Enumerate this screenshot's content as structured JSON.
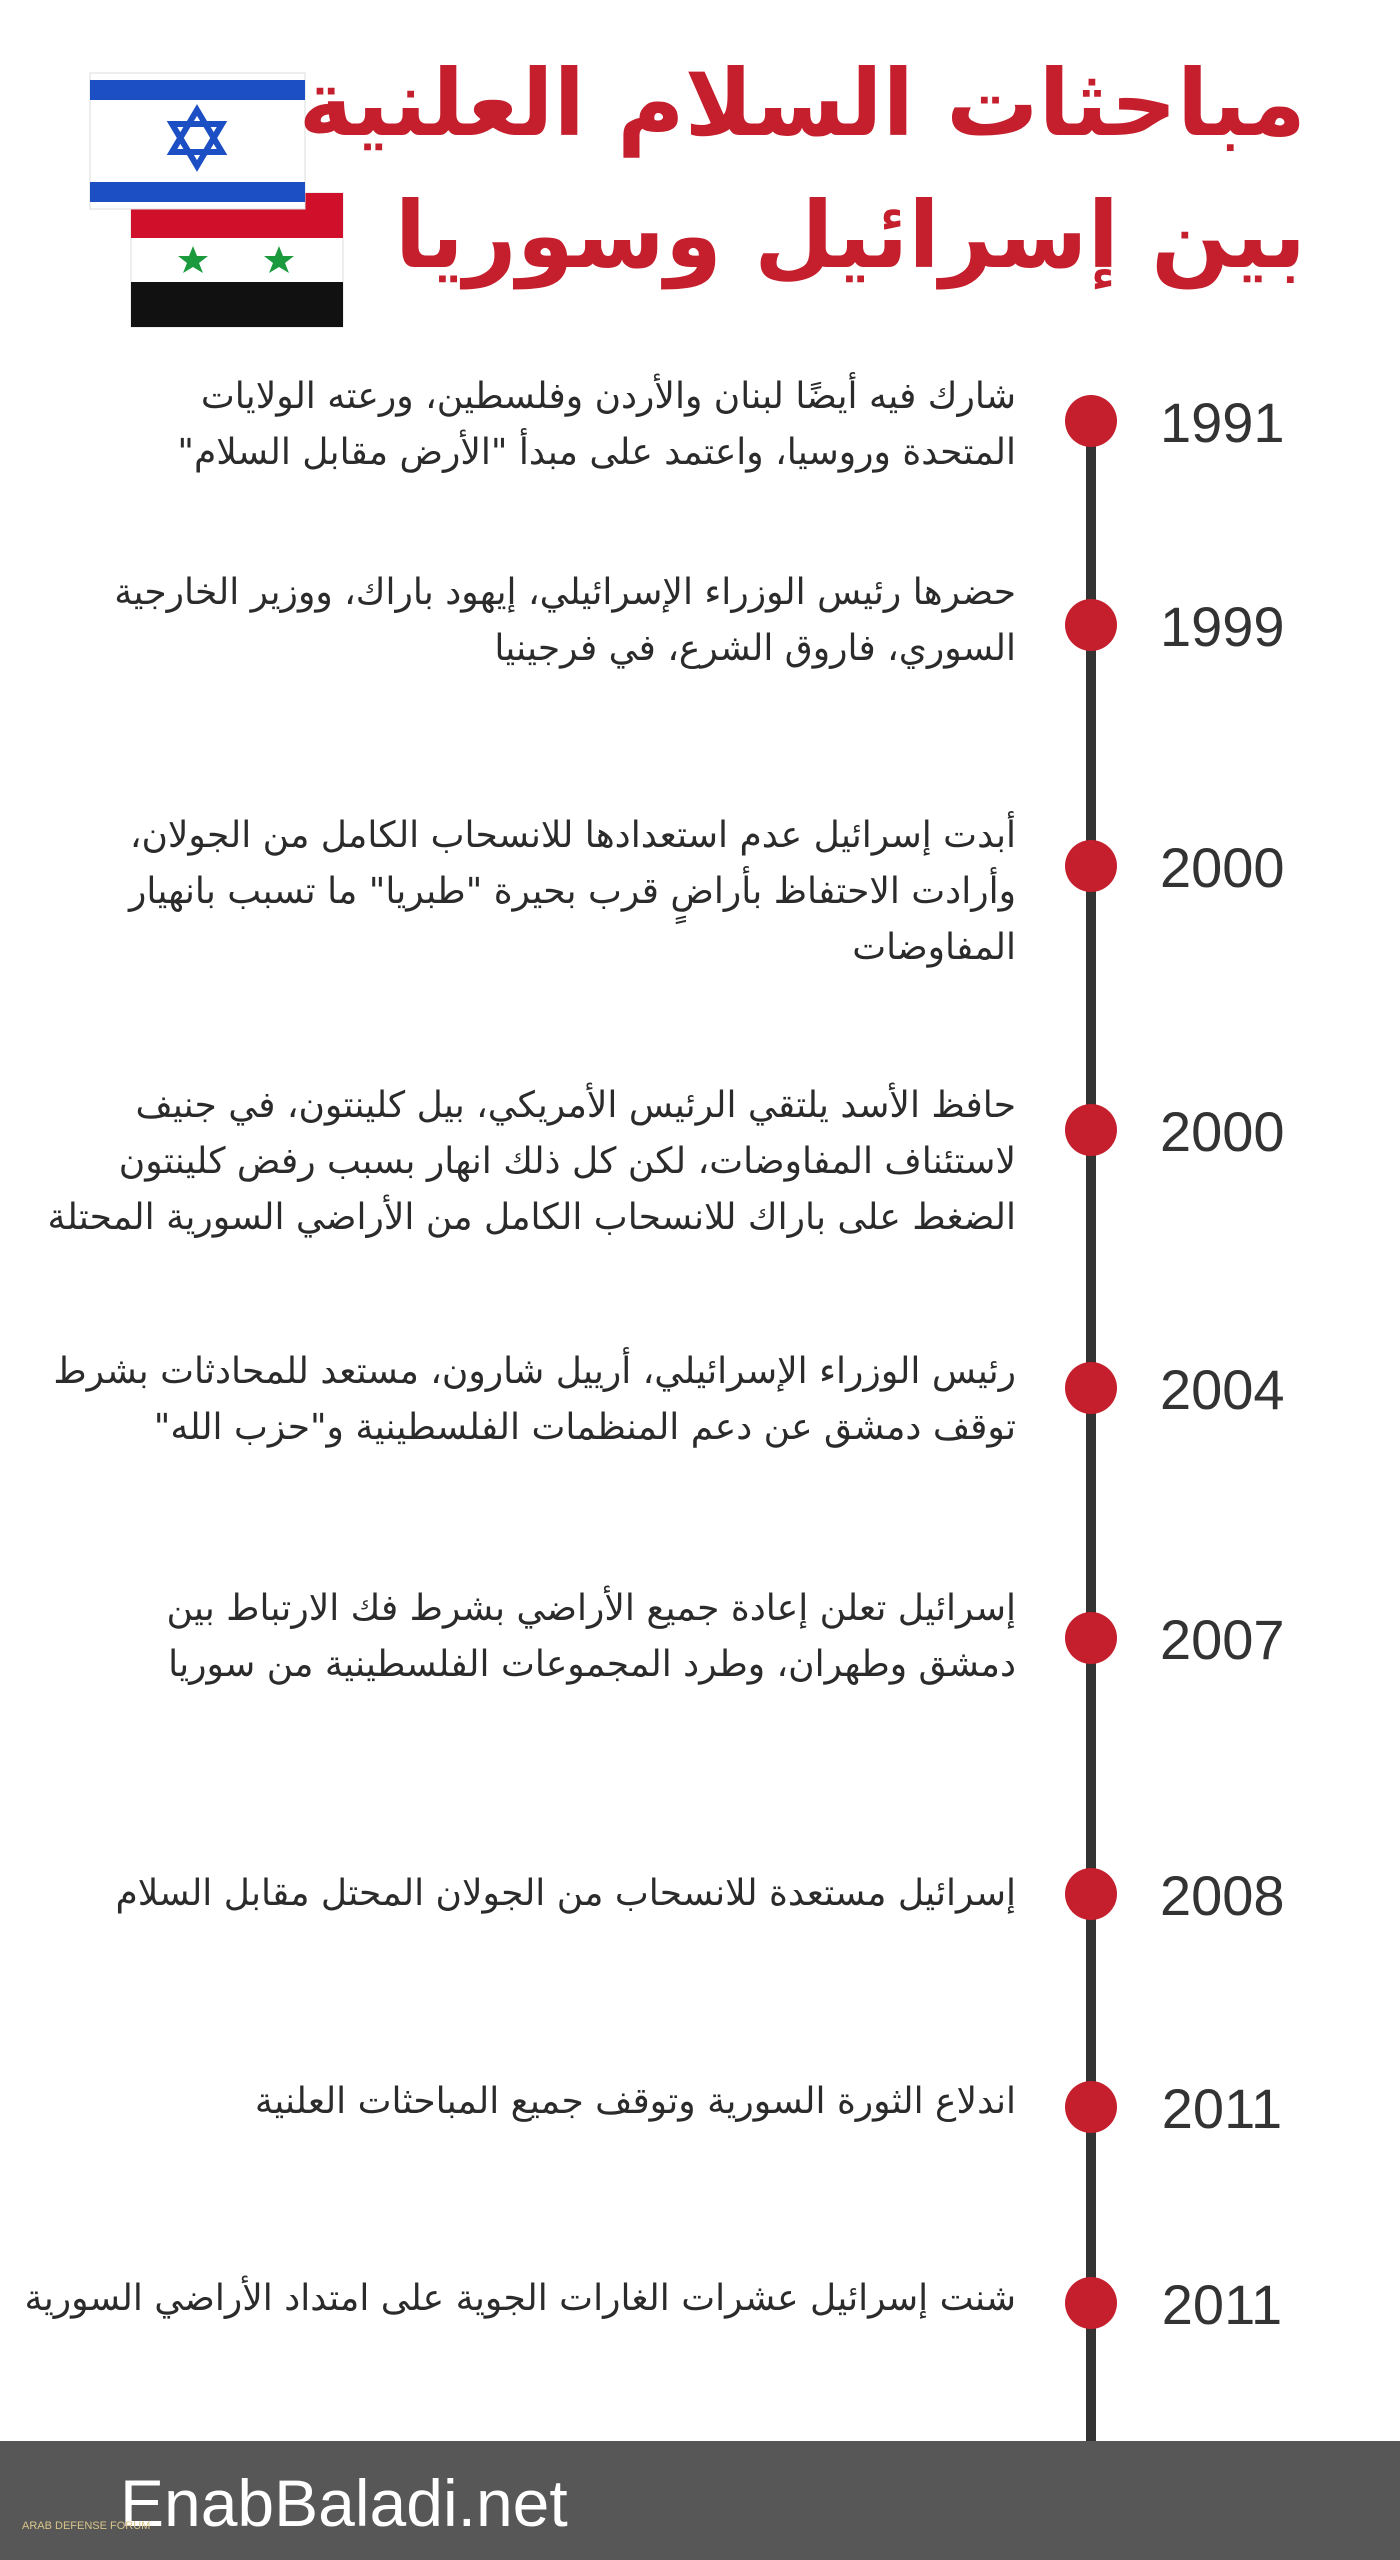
{
  "header": {
    "title_lines": [
      "مباحثات السلام العلنية",
      "بين إسرائيل وسوريا"
    ]
  },
  "timeline": [
    {
      "year": "1991",
      "lines": [
        "شارك فيه أيضًا لبنان والأردن وفلسطين، ورعته الولايات",
        "المتحدة وروسيا، واعتمد على مبدأ \"الأرض مقابل السلام\""
      ]
    },
    {
      "year": "1999",
      "lines": [
        "حضرها رئيس الوزراء الإسرائيلي، إيهود باراك، ووزير الخارجية",
        "السوري، فاروق الشرع، في فرجينيا"
      ]
    },
    {
      "year": "2000",
      "lines": [
        "أبدت إسرائيل عدم استعدادها للانسحاب الكامل من الجولان،",
        "وأرادت الاحتفاظ بأراضٍ قرب بحيرة \"طبريا\" ما تسبب بانهيار",
        "المفاوضات"
      ]
    },
    {
      "year": "2000",
      "lines": [
        "حافظ الأسد يلتقي الرئيس الأمريكي، بيل كلينتون، في جنيف",
        "لاستئناف المفاوضات، لكن كل ذلك انهار بسبب رفض كلينتون",
        "الضغط على باراك للانسحاب الكامل من الأراضي السورية المحتلة"
      ]
    },
    {
      "year": "2004",
      "lines": [
        "رئيس الوزراء الإسرائيلي، أرييل شارون، مستعد للمحادثات بشرط",
        "توقف دمشق عن دعم المنظمات الفلسطينية و\"حزب الله\""
      ]
    },
    {
      "year": "2007",
      "lines": [
        "إسرائيل تعلن إعادة جميع الأراضي بشرط فك الارتباط بين",
        "دمشق وطهران، وطرد المجموعات الفلسطينية من سوريا"
      ]
    },
    {
      "year": "2008",
      "lines": [
        "إسرائيل مستعدة للانسحاب من الجولان المحتل مقابل السلام"
      ]
    },
    {
      "year": "2011",
      "lines": [
        "اندلاع الثورة السورية وتوقف جميع المباحثات العلنية"
      ]
    },
    {
      "year": "2011",
      "lines": [
        "شنت إسرائيل عشرات الغارات الجوية على امتداد الأراضي السورية"
      ]
    }
  ],
  "footer": {
    "site": "EnabBaladi.net",
    "watermark": "ARAB DEFENSE FORUM"
  }
}
